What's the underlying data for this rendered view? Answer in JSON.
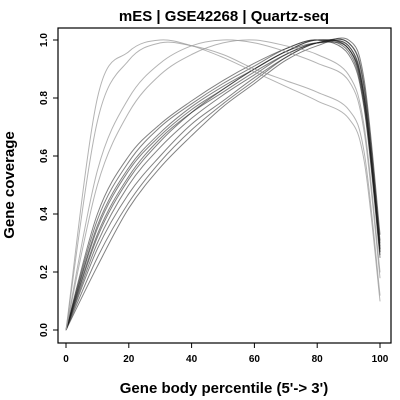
{
  "chart_data": {
    "type": "line",
    "title": "mES | GSE42268 | Quartz-seq",
    "xlabel": "Gene body percentile (5'-> 3')",
    "ylabel": "Gene coverage",
    "xlim": [
      0,
      100
    ],
    "ylim": [
      0,
      1
    ],
    "x_ticks": [
      0,
      20,
      40,
      60,
      80,
      100
    ],
    "y_ticks": [
      0.0,
      0.2,
      0.4,
      0.6,
      0.8,
      1.0
    ],
    "x_tick_labels": [
      "0",
      "20",
      "40",
      "60",
      "80",
      "100"
    ],
    "y_tick_labels": [
      "0.0",
      "0.2",
      "0.4",
      "0.6",
      "0.8",
      "1.0"
    ],
    "grid": false,
    "legend": "none",
    "colors": {
      "bundle": "#1a1a1a",
      "outlier": "#9a9a9a"
    },
    "x": [
      0,
      10,
      20,
      30,
      40,
      50,
      60,
      70,
      80,
      90,
      95,
      100
    ],
    "series": [
      {
        "values": [
          0.0,
          0.36,
          0.56,
          0.68,
          0.77,
          0.84,
          0.9,
          0.96,
          1.0,
          0.97,
          0.78,
          0.27
        ]
      },
      {
        "values": [
          0.0,
          0.33,
          0.53,
          0.66,
          0.75,
          0.82,
          0.89,
          0.95,
          0.99,
          0.98,
          0.8,
          0.28
        ]
      },
      {
        "values": [
          0.0,
          0.38,
          0.58,
          0.7,
          0.78,
          0.85,
          0.91,
          0.97,
          1.0,
          0.96,
          0.77,
          0.26
        ]
      },
      {
        "values": [
          0.0,
          0.3,
          0.5,
          0.63,
          0.73,
          0.81,
          0.88,
          0.95,
          0.99,
          0.98,
          0.81,
          0.29
        ]
      },
      {
        "values": [
          0.0,
          0.4,
          0.6,
          0.71,
          0.79,
          0.86,
          0.92,
          0.97,
          1.0,
          0.95,
          0.76,
          0.25
        ]
      },
      {
        "values": [
          0.0,
          0.35,
          0.55,
          0.67,
          0.76,
          0.83,
          0.9,
          0.96,
          0.99,
          0.97,
          0.79,
          0.28
        ]
      },
      {
        "values": [
          0.0,
          0.28,
          0.47,
          0.6,
          0.71,
          0.79,
          0.87,
          0.94,
          0.99,
          0.99,
          0.83,
          0.3
        ]
      },
      {
        "values": [
          0.0,
          0.25,
          0.44,
          0.58,
          0.69,
          0.78,
          0.86,
          0.94,
          0.99,
          0.99,
          0.84,
          0.31
        ]
      },
      {
        "values": [
          0.0,
          0.22,
          0.42,
          0.56,
          0.67,
          0.77,
          0.85,
          0.93,
          0.98,
          1.0,
          0.86,
          0.33
        ]
      },
      {
        "values": [
          0.0,
          0.32,
          0.52,
          0.65,
          0.75,
          0.83,
          0.9,
          0.96,
          1.0,
          0.97,
          0.8,
          0.27
        ]
      },
      {
        "values": [
          0.0,
          0.8,
          0.96,
          1.0,
          0.98,
          0.94,
          0.89,
          0.84,
          0.79,
          0.73,
          0.58,
          0.1
        ]
      },
      {
        "values": [
          0.0,
          0.72,
          0.93,
          0.99,
          0.98,
          0.95,
          0.9,
          0.86,
          0.82,
          0.76,
          0.61,
          0.12
        ]
      },
      {
        "values": [
          0.0,
          0.55,
          0.8,
          0.92,
          0.98,
          1.0,
          0.99,
          0.96,
          0.92,
          0.86,
          0.68,
          0.18
        ]
      },
      {
        "values": [
          0.0,
          0.5,
          0.75,
          0.88,
          0.95,
          0.99,
          1.0,
          0.98,
          0.95,
          0.88,
          0.7,
          0.2
        ]
      }
    ]
  }
}
